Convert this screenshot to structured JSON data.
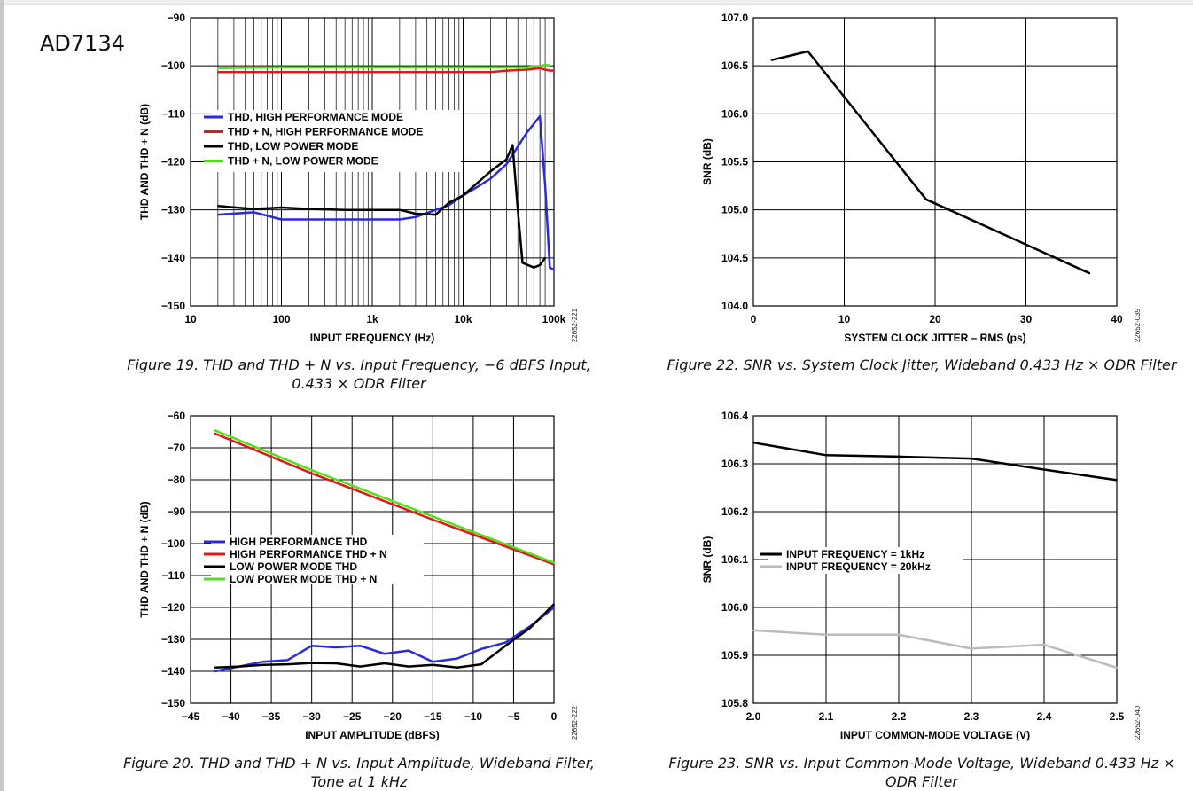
{
  "doc_title": "AD7134",
  "chart_data": [
    {
      "id": "fig19",
      "type": "line",
      "caption": "Figure 19. THD and THD + N vs. Input Frequency, −6 dBFS Input, 0.433 × ODR Filter",
      "figure_id": "22652-221",
      "xlabel": "INPUT FREQUENCY (Hz)",
      "ylabel": "THD AND THD + N (dB)",
      "xscale": "log",
      "xlim": [
        10,
        100000
      ],
      "ylim": [
        -150,
        -90
      ],
      "xticks": [
        10,
        100,
        1000,
        10000,
        100000
      ],
      "xtick_labels": [
        "10",
        "100",
        "1k",
        "10k",
        "100k"
      ],
      "yticks": [
        -150,
        -140,
        -130,
        -120,
        -110,
        -100,
        -90
      ],
      "ytick_labels": [
        "−150",
        "−140",
        "−130",
        "−120",
        "−110",
        "−100",
        "−90"
      ],
      "grid": true,
      "legend_position": "upper-left",
      "series": [
        {
          "name": "THD, HIGH PERFORMANCE MODE",
          "color": "#2a2ad8",
          "x": [
            20,
            50,
            100,
            200,
            500,
            1000,
            2000,
            3000,
            5000,
            7000,
            10000,
            15000,
            20000,
            30000,
            50000,
            70000,
            80000,
            90000,
            100000
          ],
          "y": [
            -131,
            -130.5,
            -132,
            -132,
            -132,
            -132,
            -132,
            -131.5,
            -130,
            -129,
            -127,
            -125,
            -123.5,
            -120.5,
            -114,
            -110.5,
            -125,
            -142,
            -142.5
          ]
        },
        {
          "name": "THD + N, HIGH PERFORMANCE MODE",
          "color": "#e01818",
          "x": [
            20,
            100,
            1000,
            10000,
            20000,
            30000,
            50000,
            70000,
            80000,
            90000,
            100000
          ],
          "y": [
            -101.3,
            -101.3,
            -101.3,
            -101.3,
            -101.3,
            -101,
            -100.8,
            -100.5,
            -100.8,
            -101,
            -101
          ]
        },
        {
          "name": "THD, LOW POWER MODE",
          "color": "#000000",
          "x": [
            20,
            50,
            100,
            200,
            500,
            1000,
            2000,
            3000,
            5000,
            7000,
            10000,
            20000,
            30000,
            35000,
            40000,
            45000,
            60000,
            70000,
            80000
          ],
          "y": [
            -129.2,
            -129.8,
            -129.5,
            -129.8,
            -130,
            -130,
            -130,
            -130.8,
            -131,
            -128.5,
            -127,
            -122,
            -119.5,
            -116.5,
            -130,
            -141,
            -142,
            -141.5,
            -140
          ]
        },
        {
          "name": "THD + N, LOW POWER MODE",
          "color": "#55dd22",
          "x": [
            20,
            100,
            1000,
            10000,
            50000,
            70000,
            80000,
            90000
          ],
          "y": [
            -100.5,
            -100.3,
            -100.3,
            -100.3,
            -100.3,
            -100,
            -99.8,
            -99.9
          ]
        }
      ]
    },
    {
      "id": "fig22",
      "type": "line",
      "caption": "Figure 22. SNR vs. System Clock Jitter, Wideband 0.433 Hz × ODR Filter",
      "figure_id": "22652-039",
      "xlabel": "SYSTEM CLOCK JITTER – RMS (ps)",
      "ylabel": "SNR (dB)",
      "xlim": [
        0,
        40
      ],
      "ylim": [
        104.0,
        107.0
      ],
      "xticks": [
        0,
        10,
        20,
        30,
        40
      ],
      "xtick_labels": [
        "0",
        "10",
        "20",
        "30",
        "40"
      ],
      "yticks": [
        104.0,
        104.5,
        105.0,
        105.5,
        106.0,
        106.5,
        107.0
      ],
      "ytick_labels": [
        "104.0",
        "104.5",
        "105.0",
        "105.5",
        "106.0",
        "106.5",
        "107.0"
      ],
      "grid": true,
      "series": [
        {
          "color": "#000000",
          "x": [
            2,
            6,
            19,
            37
          ],
          "y": [
            106.56,
            106.65,
            105.11,
            104.34
          ]
        }
      ]
    },
    {
      "id": "fig20",
      "type": "line",
      "caption": "Figure 20. THD and THD + N vs. Input Amplitude, Wideband Filter, Tone at 1 kHz",
      "figure_id": "22652-222",
      "xlabel": "INPUT AMPLITUDE (dBFS)",
      "ylabel": "THD AND THD + N (dB)",
      "xlim": [
        -45,
        0
      ],
      "ylim": [
        -150,
        -60
      ],
      "xticks": [
        -45,
        -40,
        -35,
        -30,
        -25,
        -20,
        -15,
        -10,
        -5,
        0
      ],
      "xtick_labels": [
        "−45",
        "−40",
        "−35",
        "−30",
        "−25",
        "−20",
        "−15",
        "−10",
        "−5",
        "0"
      ],
      "yticks": [
        -150,
        -140,
        -130,
        -120,
        -110,
        -100,
        -90,
        -80,
        -70,
        -60
      ],
      "ytick_labels": [
        "−150",
        "−140",
        "−130",
        "−120",
        "−110",
        "−100",
        "−90",
        "−80",
        "−70",
        "−60"
      ],
      "grid": true,
      "legend_position": "center-left",
      "series": [
        {
          "name": "HIGH PERFORMANCE THD",
          "color": "#2a2ad8",
          "x": [
            -42,
            -39,
            -36,
            -33,
            -30,
            -27,
            -24,
            -21,
            -18,
            -15,
            -12,
            -9,
            -6,
            -3,
            0
          ],
          "y": [
            -140,
            -138.5,
            -137,
            -136.5,
            -132,
            -132.5,
            -132,
            -134.5,
            -133.5,
            -137,
            -136,
            -133,
            -131,
            -126,
            -120
          ]
        },
        {
          "name": "HIGH PERFORMANCE THD + N",
          "color": "#e01818",
          "x": [
            -42,
            -30,
            -15,
            0
          ],
          "y": [
            -65.5,
            -78,
            -92.5,
            -106.5
          ]
        },
        {
          "name": "LOW POWER MODE THD",
          "color": "#000000",
          "x": [
            -42,
            -39,
            -36,
            -33,
            -30,
            -27,
            -24,
            -21,
            -18,
            -15,
            -12,
            -9,
            -6,
            -3,
            0
          ],
          "y": [
            -138.8,
            -138.5,
            -138,
            -137.8,
            -137.4,
            -137.5,
            -138.5,
            -137.5,
            -138.5,
            -138,
            -138.8,
            -137.8,
            -132,
            -126.5,
            -119
          ]
        },
        {
          "name": "LOW POWER MODE THD + N",
          "color": "#55dd22",
          "x": [
            -42,
            -30,
            -15,
            0
          ],
          "y": [
            -64.5,
            -77,
            -91.5,
            -106
          ]
        }
      ]
    },
    {
      "id": "fig23",
      "type": "line",
      "caption": "Figure 23. SNR vs. Input Common-Mode Voltage, Wideband 0.433 Hz × ODR Filter",
      "figure_id": "22652-040",
      "xlabel": "INPUT COMMON-MODE VOLTAGE (V)",
      "ylabel": "SNR (dB)",
      "xlim": [
        2.0,
        2.5
      ],
      "ylim": [
        105.8,
        106.4
      ],
      "xticks": [
        2.0,
        2.1,
        2.2,
        2.3,
        2.4,
        2.5
      ],
      "xtick_labels": [
        "2.0",
        "2.1",
        "2.2",
        "2.3",
        "2.4",
        "2.5"
      ],
      "yticks": [
        105.8,
        105.9,
        106.0,
        106.1,
        106.2,
        106.3,
        106.4
      ],
      "ytick_labels": [
        "105.8",
        "105.9",
        "106.0",
        "106.1",
        "106.2",
        "106.3",
        "106.4"
      ],
      "grid": true,
      "legend_position": "center-left",
      "series": [
        {
          "name": "INPUT FREQUENCY = 1kHz",
          "color": "#000000",
          "x": [
            2.0,
            2.1,
            2.2,
            2.3,
            2.4,
            2.5
          ],
          "y": [
            106.344,
            106.318,
            106.315,
            106.311,
            106.288,
            106.266
          ]
        },
        {
          "name": "INPUT FREQUENCY = 20kHz",
          "color": "#bbbbbb",
          "x": [
            2.0,
            2.1,
            2.2,
            2.3,
            2.4,
            2.5
          ],
          "y": [
            105.952,
            105.943,
            105.943,
            105.914,
            105.922,
            105.874
          ]
        }
      ]
    }
  ]
}
